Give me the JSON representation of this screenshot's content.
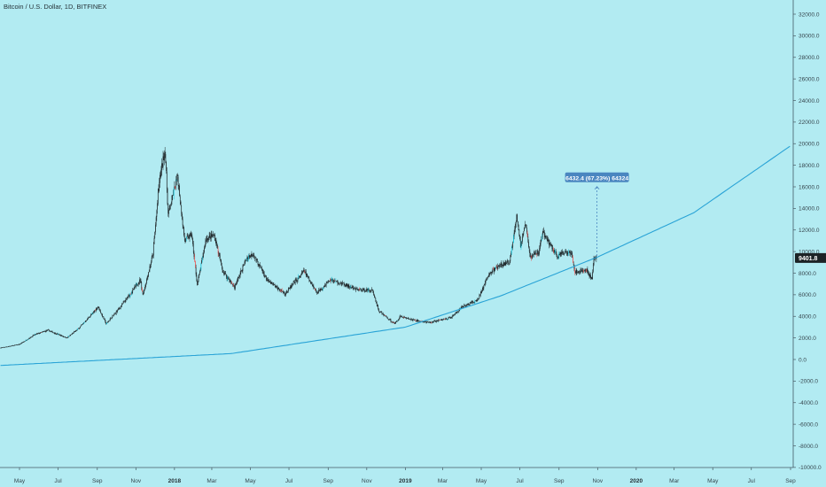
{
  "header": {
    "title": "Bitcoin / U.S. Dollar, 1D, BITFINEX"
  },
  "colors": {
    "background": "#b2ebf2",
    "candle": "#1c2326",
    "candle_up_accent": "#00bcd4",
    "candle_down_accent": "#ef5350",
    "curve": "#29a3d6",
    "price_label_bg": "#1c2326",
    "measure_bg": "#4a86c0"
  },
  "price_label": "9401.8",
  "measure_label": "6432.4 (67.23%) 64324",
  "chart_data": {
    "type": "candlestick",
    "title": "Bitcoin / U.S. Dollar, 1D, BITFINEX",
    "ylim": [
      -10000,
      33000
    ],
    "y_ticks": [
      "32000.0",
      "30000.0",
      "28000.0",
      "26000.0",
      "24000.0",
      "22000.0",
      "20000.0",
      "18000.0",
      "16000.0",
      "14000.0",
      "12000.0",
      "10000.0",
      "8000.0",
      "6000.0",
      "4000.0",
      "2000.0",
      "0.0",
      "-2000.0",
      "-4000.0",
      "-6000.0",
      "-8000.0",
      "-10000.0"
    ],
    "x_ticks": [
      "May",
      "Jul",
      "Sep",
      "Nov",
      "2018",
      "Mar",
      "May",
      "Jul",
      "Sep",
      "Nov",
      "2019",
      "Mar",
      "May",
      "Jul",
      "Sep",
      "Nov",
      "2020",
      "Mar",
      "May",
      "Jul",
      "Sep"
    ],
    "x_ticks_bold": [
      "2018",
      "2019",
      "2020"
    ],
    "price_path": [
      {
        "date": "2017-04-01",
        "close": 1080
      },
      {
        "date": "2017-05-01",
        "close": 1400
      },
      {
        "date": "2017-05-25",
        "close": 2300
      },
      {
        "date": "2017-06-15",
        "close": 2700
      },
      {
        "date": "2017-07-15",
        "close": 2000
      },
      {
        "date": "2017-08-01",
        "close": 2800
      },
      {
        "date": "2017-08-25",
        "close": 4300
      },
      {
        "date": "2017-09-02",
        "close": 4900
      },
      {
        "date": "2017-09-15",
        "close": 3300
      },
      {
        "date": "2017-10-01",
        "close": 4400
      },
      {
        "date": "2017-10-20",
        "close": 5800
      },
      {
        "date": "2017-11-08",
        "close": 7400
      },
      {
        "date": "2017-11-12",
        "close": 6000
      },
      {
        "date": "2017-11-28",
        "close": 9800
      },
      {
        "date": "2017-12-08",
        "close": 16500
      },
      {
        "date": "2017-12-17",
        "close": 19500
      },
      {
        "date": "2017-12-22",
        "close": 13500
      },
      {
        "date": "2018-01-06",
        "close": 17000
      },
      {
        "date": "2018-01-17",
        "close": 11000
      },
      {
        "date": "2018-01-28",
        "close": 11600
      },
      {
        "date": "2018-02-06",
        "close": 6900
      },
      {
        "date": "2018-02-20",
        "close": 11200
      },
      {
        "date": "2018-03-05",
        "close": 11500
      },
      {
        "date": "2018-03-18",
        "close": 8200
      },
      {
        "date": "2018-04-06",
        "close": 6700
      },
      {
        "date": "2018-04-25",
        "close": 9400
      },
      {
        "date": "2018-05-05",
        "close": 9800
      },
      {
        "date": "2018-05-28",
        "close": 7300
      },
      {
        "date": "2018-06-25",
        "close": 6100
      },
      {
        "date": "2018-07-25",
        "close": 8200
      },
      {
        "date": "2018-08-14",
        "close": 6200
      },
      {
        "date": "2018-09-05",
        "close": 7400
      },
      {
        "date": "2018-10-15",
        "close": 6500
      },
      {
        "date": "2018-11-10",
        "close": 6400
      },
      {
        "date": "2018-11-20",
        "close": 4500
      },
      {
        "date": "2018-12-15",
        "close": 3300
      },
      {
        "date": "2018-12-24",
        "close": 4000
      },
      {
        "date": "2019-01-10",
        "close": 3700
      },
      {
        "date": "2019-02-07",
        "close": 3400
      },
      {
        "date": "2019-03-15",
        "close": 3900
      },
      {
        "date": "2019-04-02",
        "close": 4900
      },
      {
        "date": "2019-04-25",
        "close": 5500
      },
      {
        "date": "2019-05-14",
        "close": 8000
      },
      {
        "date": "2019-05-30",
        "close": 8700
      },
      {
        "date": "2019-06-15",
        "close": 9000
      },
      {
        "date": "2019-06-26",
        "close": 13500
      },
      {
        "date": "2019-07-02",
        "close": 10500
      },
      {
        "date": "2019-07-10",
        "close": 12500
      },
      {
        "date": "2019-07-17",
        "close": 9500
      },
      {
        "date": "2019-07-31",
        "close": 10000
      },
      {
        "date": "2019-08-06",
        "close": 11800
      },
      {
        "date": "2019-08-29",
        "close": 9600
      },
      {
        "date": "2019-09-20",
        "close": 10100
      },
      {
        "date": "2019-09-26",
        "close": 8100
      },
      {
        "date": "2019-10-15",
        "close": 8300
      },
      {
        "date": "2019-10-23",
        "close": 7400
      },
      {
        "date": "2019-10-26",
        "close": 9400
      },
      {
        "date": "2019-10-30",
        "close": 9401.8
      }
    ],
    "curve": {
      "label": "",
      "points": [
        {
          "date": "2017-04-01",
          "value": -550
        },
        {
          "date": "2018-04-01",
          "value": 550
        },
        {
          "date": "2019-01-01",
          "value": 3000
        },
        {
          "date": "2019-06-01",
          "value": 5900
        },
        {
          "date": "2019-11-01",
          "value": 9500
        },
        {
          "date": "2020-04-01",
          "value": 13600
        },
        {
          "date": "2020-09-01",
          "value": 19800
        }
      ]
    },
    "last_price": 9401.8,
    "measurement": {
      "from_date": "2019-10-31",
      "from_value": 9600,
      "to_value": 16100,
      "label": "6432.4 (67.23%) 64324"
    }
  }
}
